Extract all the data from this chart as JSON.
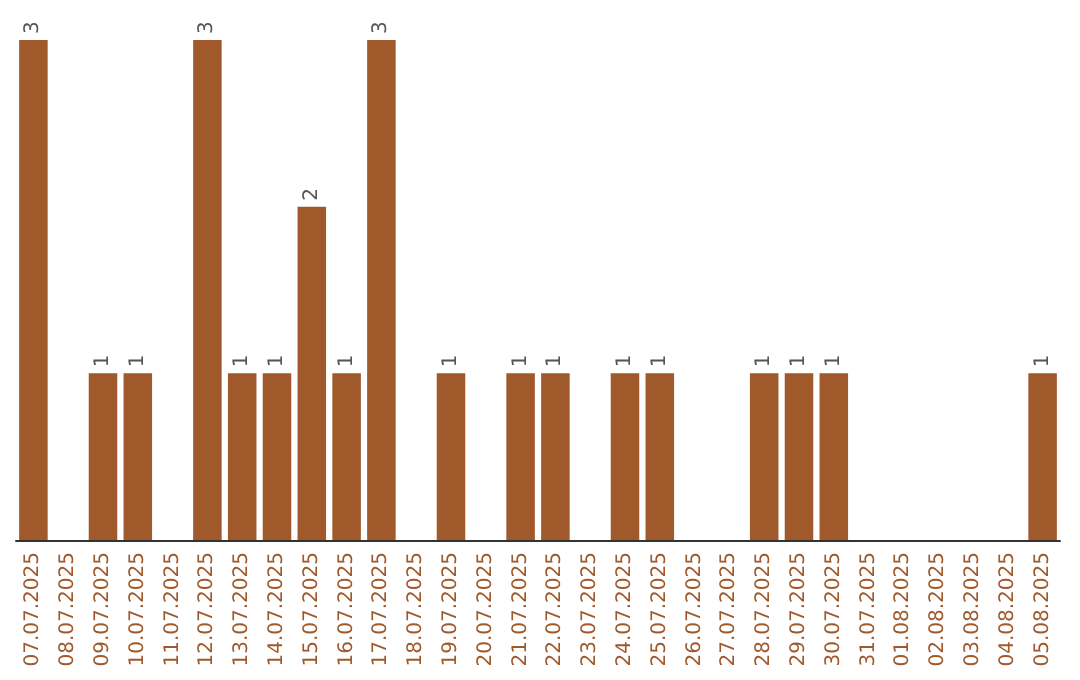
{
  "chart_data": {
    "type": "bar",
    "categories": [
      "07.07.2025",
      "08.07.2025",
      "09.07.2025",
      "10.07.2025",
      "11.07.2025",
      "12.07.2025",
      "13.07.2025",
      "14.07.2025",
      "15.07.2025",
      "16.07.2025",
      "17.07.2025",
      "18.07.2025",
      "19.07.2025",
      "20.07.2025",
      "21.07.2025",
      "22.07.2025",
      "23.07.2025",
      "24.07.2025",
      "25.07.2025",
      "26.07.2025",
      "27.07.2025",
      "28.07.2025",
      "29.07.2025",
      "30.07.2025",
      "31.07.2025",
      "01.08.2025",
      "02.08.2025",
      "03.08.2025",
      "04.08.2025",
      "05.08.2025"
    ],
    "values": [
      3,
      0,
      1,
      1,
      0,
      3,
      1,
      1,
      2,
      1,
      3,
      0,
      1,
      0,
      1,
      1,
      0,
      1,
      1,
      0,
      0,
      1,
      1,
      1,
      0,
      0,
      0,
      0,
      0,
      1
    ],
    "value_labels": [
      "3",
      null,
      "1",
      "1",
      null,
      "3",
      "1",
      "1",
      "2",
      "1",
      "3",
      null,
      "1",
      null,
      "1",
      "1",
      null,
      "1",
      "1",
      null,
      null,
      "1",
      "1",
      "1",
      null,
      null,
      null,
      null,
      null,
      "1"
    ],
    "color": "#a0592b",
    "tick_labels": "x"
  }
}
